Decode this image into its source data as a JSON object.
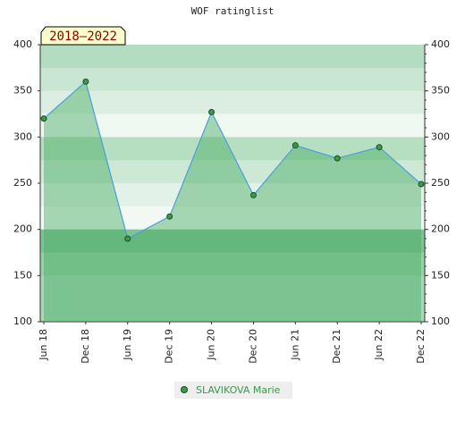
{
  "chart_data": {
    "type": "area",
    "title": "WOF ratinglist",
    "annotation": "2018–2022",
    "categories": [
      "Jun 18",
      "Dec 18",
      "Jun 19",
      "Dec 19",
      "Jun 20",
      "Dec 20",
      "Jun 21",
      "Dec 21",
      "Jun 22",
      "Dec 22"
    ],
    "series": [
      {
        "name": "SLAVIKOVA Marie",
        "color": "#4a9fd8",
        "values": [
          320,
          360,
          190,
          214,
          327,
          237,
          291,
          277,
          289,
          249
        ]
      }
    ],
    "ylim": [
      100,
      400
    ],
    "yticks": [
      100,
      150,
      200,
      250,
      300,
      350,
      400
    ],
    "y2lim": [
      100,
      400
    ],
    "y2ticks": [
      100,
      150,
      200,
      250,
      300,
      350,
      400
    ]
  }
}
